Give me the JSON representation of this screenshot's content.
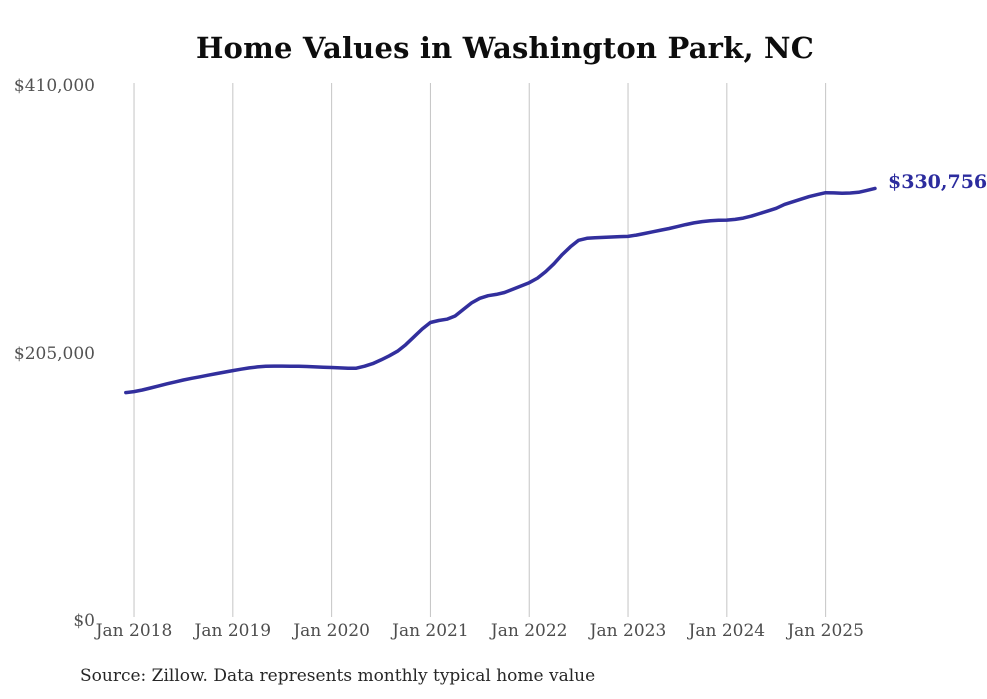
{
  "title": "Home Values in Washington Park, NC",
  "source_note": "Source: Zillow. Data represents monthly typical home value",
  "end_label": "$330,756",
  "colors": {
    "line": "#322f9d",
    "end_label": "#2c2c9e",
    "grid": "#c4c4c4",
    "title_text": "#0d0d0d",
    "axis_text": "#4d4d4d",
    "source_text": "#262626",
    "background": "#ffffff"
  },
  "chart_data": {
    "type": "line",
    "title": "Home Values in Washington Park, NC",
    "xlabel": "",
    "ylabel": "",
    "x_start": "Dec 2017",
    "x_end": "Jul 2025",
    "points_per_year": 12,
    "x_tick_labels": [
      "Jan 2018",
      "Jan 2019",
      "Jan 2020",
      "Jan 2021",
      "Jan 2022",
      "Jan 2023",
      "Jan 2024",
      "Jan 2025"
    ],
    "y_ticks": [
      0,
      205000,
      410000
    ],
    "y_tick_labels": [
      "$0",
      "$205,000",
      "$410,000"
    ],
    "ylim": [
      0,
      410000
    ],
    "grid": "vertical-only",
    "legend": "none",
    "last_value": 330756,
    "last_value_label": "$330,756",
    "series": [
      {
        "name": "Monthly typical home value",
        "values": [
          174300,
          175000,
          176300,
          177800,
          179400,
          181000,
          182500,
          183900,
          185200,
          186400,
          187600,
          188800,
          190000,
          191100,
          192200,
          193200,
          194000,
          194400,
          194600,
          194600,
          194500,
          194400,
          194300,
          194000,
          193700,
          193500,
          193200,
          193000,
          193000,
          194500,
          196500,
          199300,
          202500,
          206000,
          211000,
          217000,
          223000,
          228000,
          229500,
          230500,
          233000,
          238000,
          243000,
          246500,
          248500,
          249500,
          251000,
          253500,
          256000,
          258500,
          262000,
          267000,
          273000,
          280000,
          286000,
          291000,
          292500,
          293000,
          293200,
          293500,
          293800,
          294000,
          295000,
          296200,
          297500,
          298800,
          300000,
          301500,
          303000,
          304300,
          305300,
          306000,
          306400,
          306500,
          307000,
          308000,
          309500,
          311500,
          313500,
          315500,
          318500,
          320500,
          322500,
          324500,
          326000,
          327500,
          327300,
          327000,
          327200,
          327800,
          329200,
          330756
        ]
      }
    ]
  }
}
